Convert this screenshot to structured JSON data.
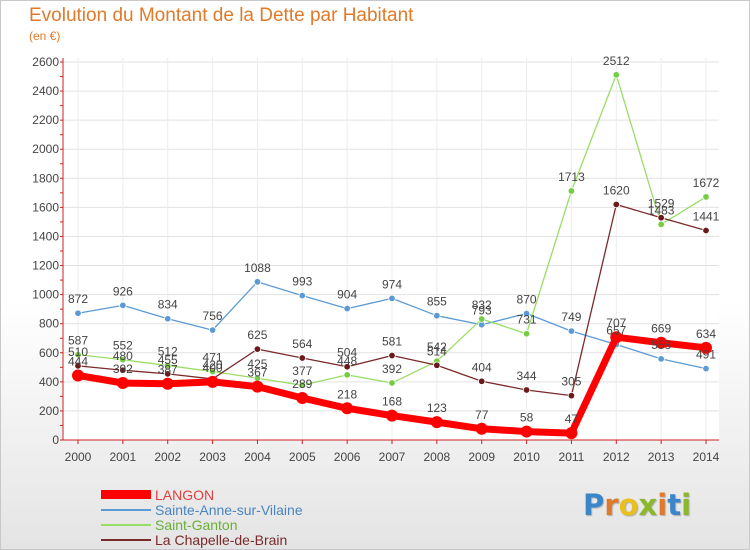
{
  "title": "Evolution du Montant de la Dette par Habitant",
  "subtitle": "(en €)",
  "logo": {
    "letters": [
      "P",
      "r",
      "o",
      "x",
      "i",
      "t",
      "i"
    ],
    "colors": [
      "#3a86c8",
      "#e07a2a",
      "#e8c020",
      "#8ab828",
      "#e07a2a",
      "#3a86c8",
      "#8ab828"
    ]
  },
  "chart_data": {
    "type": "line",
    "x": [
      "2000",
      "2001",
      "2002",
      "2003",
      "2004",
      "2005",
      "2006",
      "2007",
      "2008",
      "2009",
      "2010",
      "2011",
      "2012",
      "2013",
      "2014"
    ],
    "ylim": [
      0,
      2600
    ],
    "yticks": [
      "0",
      "200",
      "400",
      "600",
      "800",
      "1000",
      "1200",
      "1400",
      "1600",
      "1800",
      "2000",
      "2200",
      "2400",
      "2600"
    ],
    "grid": true,
    "legend_position": "bottom-left",
    "series": [
      {
        "name": "LANGON",
        "color": "#ff0000",
        "values": [
          444,
          392,
          387,
          400,
          367,
          289,
          218,
          168,
          123,
          77,
          58,
          47,
          707,
          669,
          634
        ],
        "labels": [
          "444",
          "392",
          "387",
          "400",
          "367",
          "289",
          "218",
          "168",
          "123",
          "77",
          "58",
          "47",
          "707",
          "669",
          "634"
        ]
      },
      {
        "name": "Sainte-Anne-sur-Vilaine",
        "color": "#5b9bd5",
        "values": [
          872,
          926,
          834,
          756,
          1088,
          993,
          904,
          974,
          855,
          793,
          870,
          749,
          657,
          558,
          491
        ],
        "labels": [
          "872",
          "926",
          "834",
          "756",
          "1088",
          "993",
          "904",
          "974",
          "855",
          "793",
          "870",
          "749",
          "657",
          "558",
          "491"
        ]
      },
      {
        "name": "Saint-Ganton",
        "color": "#99dd66",
        "values": [
          587,
          552,
          512,
          471,
          425,
          377,
          448,
          392,
          542,
          832,
          731,
          1713,
          2512,
          1483,
          1672
        ],
        "labels": [
          "587",
          "552",
          "512",
          "471",
          "425",
          "377",
          "448",
          "392",
          "542",
          "832",
          "731",
          "1713",
          "2512",
          "1483",
          "1672"
        ]
      },
      {
        "name": "La Chapelle-de-Brain",
        "color": "#7a2a2a",
        "values": [
          510,
          480,
          455,
          420,
          625,
          564,
          504,
          581,
          514,
          404,
          344,
          305,
          1620,
          1529,
          1441
        ],
        "labels": [
          "510",
          "480",
          "455",
          "420",
          "625",
          "564",
          "504",
          "581",
          "514",
          "404",
          "344",
          "305",
          "1620",
          "1529",
          "1441"
        ]
      }
    ]
  }
}
